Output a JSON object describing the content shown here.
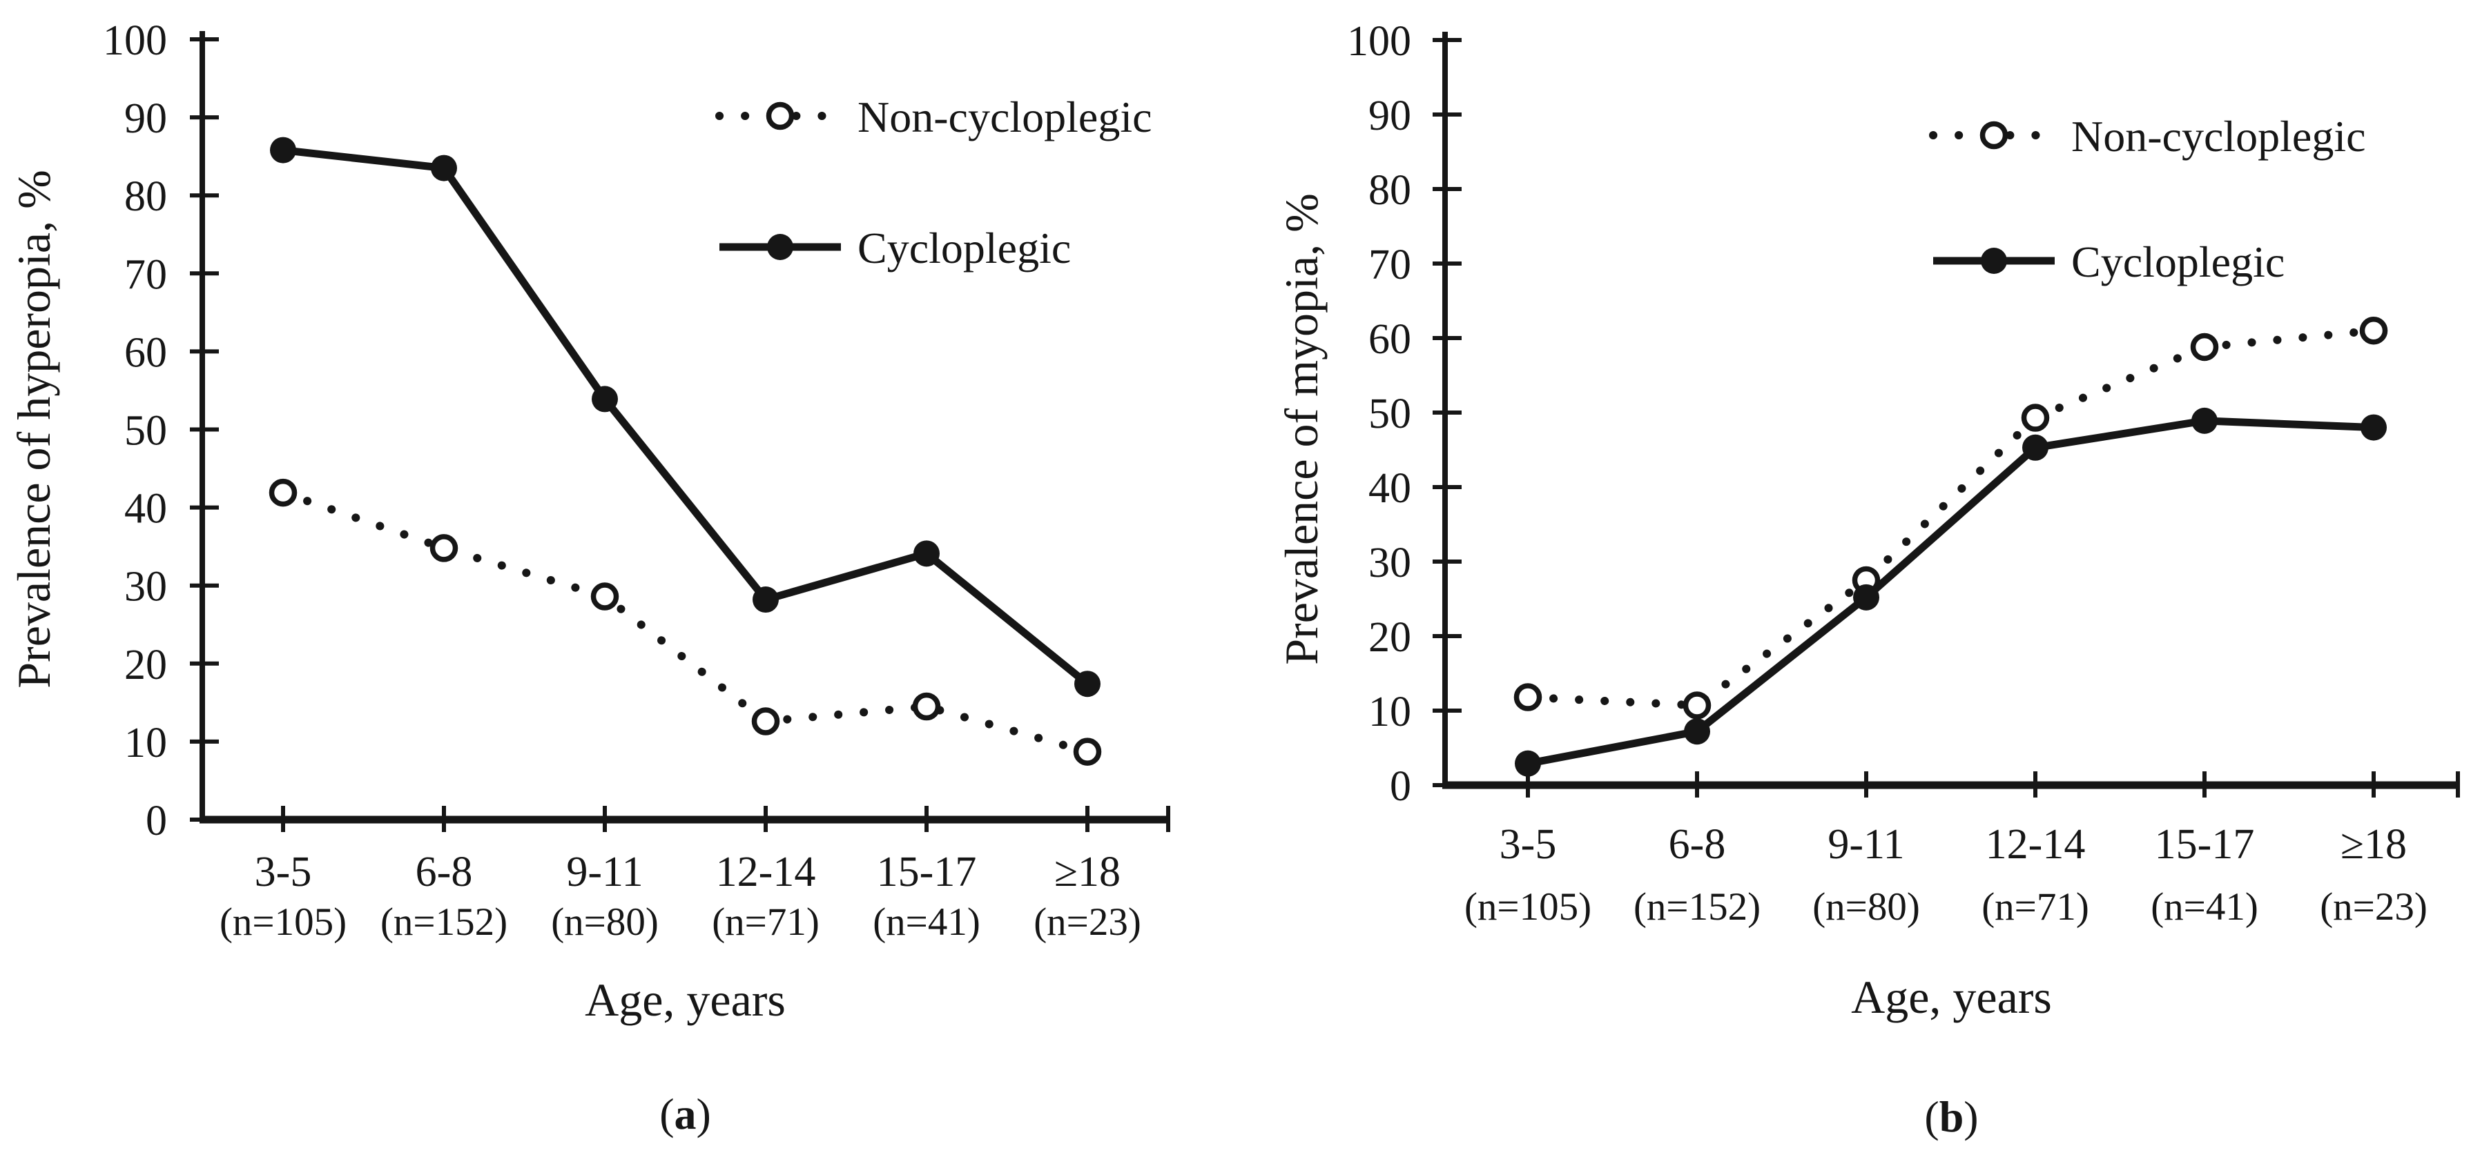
{
  "figure": {
    "background": "#ffffff",
    "ink_color": "#161616",
    "description": "Two-panel line chart figure comparing non-cycloplegic and cycloplegic refraction results by age group"
  },
  "chart_data": [
    {
      "type": "line",
      "panel": "a",
      "caption": {
        "prefix": "(",
        "letter": "a",
        "suffix": ")"
      },
      "ylabel": "Prevalence of hyperopia, %",
      "xlabel": "Age, years",
      "categories": [
        "3-5",
        "6-8",
        "9-11",
        "12-14",
        "15-17",
        "≥18"
      ],
      "category_counts": [
        "(n=105)",
        "(n=152)",
        "(n=80)",
        "(n=71)",
        "(n=41)",
        "(n=23)"
      ],
      "yticks": [
        "0",
        "10",
        "20",
        "30",
        "40",
        "50",
        "60",
        "70",
        "80",
        "90",
        "100"
      ],
      "ylim": [
        0,
        100
      ],
      "ytick_step": 10,
      "grid": false,
      "legend_position": "top-right-inside",
      "series": [
        {
          "name": "Non-cycloplegic",
          "line_style": "dotted",
          "marker": "open-circle",
          "values": [
            41.9,
            34.8,
            28.6,
            12.6,
            14.5,
            8.7
          ]
        },
        {
          "name": "Cycloplegic",
          "line_style": "solid",
          "marker": "filled-circle",
          "values": [
            85.8,
            83.5,
            53.9,
            28.2,
            34.1,
            17.4
          ]
        }
      ]
    },
    {
      "type": "line",
      "panel": "b",
      "caption": {
        "prefix": "(",
        "letter": "b",
        "suffix": ")"
      },
      "ylabel": "Prevalence of myopia, %",
      "xlabel": "Age, years",
      "categories": [
        "3-5",
        "6-8",
        "9-11",
        "12-14",
        "15-17",
        "≥18"
      ],
      "category_counts": [
        "(n=105)",
        "(n=152)",
        "(n=80)",
        "(n=71)",
        "(n=41)",
        "(n=23)"
      ],
      "yticks": [
        "0",
        "10",
        "20",
        "30",
        "40",
        "50",
        "60",
        "70",
        "80",
        "90",
        "100"
      ],
      "ylim": [
        0,
        100
      ],
      "ytick_step": 10,
      "grid": false,
      "legend_position": "top-right-inside",
      "series": [
        {
          "name": "Non-cycloplegic",
          "line_style": "dotted",
          "marker": "open-circle",
          "values": [
            11.8,
            10.7,
            27.5,
            49.3,
            58.8,
            61.0
          ]
        },
        {
          "name": "Cycloplegic",
          "line_style": "solid",
          "marker": "filled-circle",
          "values": [
            2.9,
            7.2,
            25.2,
            45.3,
            48.9,
            48.0
          ]
        }
      ]
    }
  ]
}
